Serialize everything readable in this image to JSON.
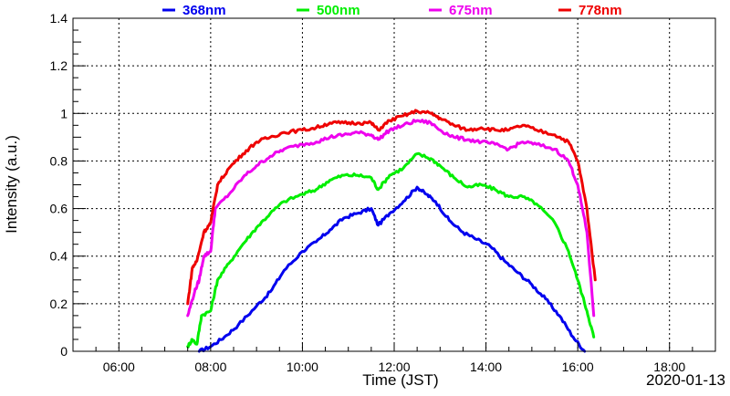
{
  "chart_data": {
    "type": "line",
    "title": "",
    "xlabel": "Time (JST)",
    "ylabel": "Intensity (a.u.)",
    "date_label": "2020-01-13",
    "xlim": [
      5.0,
      19.0
    ],
    "ylim": [
      0,
      1.4
    ],
    "x_ticks": [
      {
        "value": 6,
        "label": "06:00"
      },
      {
        "value": 8,
        "label": "08:00"
      },
      {
        "value": 10,
        "label": "10:00"
      },
      {
        "value": 12,
        "label": "12:00"
      },
      {
        "value": 14,
        "label": "14:00"
      },
      {
        "value": 16,
        "label": "16:00"
      },
      {
        "value": 18,
        "label": "18:00"
      }
    ],
    "y_ticks": [
      {
        "value": 0,
        "label": "0"
      },
      {
        "value": 0.2,
        "label": "0.2"
      },
      {
        "value": 0.4,
        "label": "0.4"
      },
      {
        "value": 0.6,
        "label": "0.6"
      },
      {
        "value": 0.8,
        "label": "0.8"
      },
      {
        "value": 1.0,
        "label": "1"
      },
      {
        "value": 1.2,
        "label": "1.2"
      },
      {
        "value": 1.4,
        "label": "1.4"
      }
    ],
    "grid": true,
    "legend_position": "top",
    "series": [
      {
        "name": "368nm",
        "color": "#0000ee",
        "points": [
          [
            7.75,
            0.0
          ],
          [
            8.0,
            0.02
          ],
          [
            8.3,
            0.06
          ],
          [
            8.6,
            0.11
          ],
          [
            9.0,
            0.19
          ],
          [
            9.3,
            0.25
          ],
          [
            9.6,
            0.34
          ],
          [
            10.0,
            0.42
          ],
          [
            10.3,
            0.46
          ],
          [
            10.6,
            0.51
          ],
          [
            10.9,
            0.56
          ],
          [
            11.2,
            0.58
          ],
          [
            11.5,
            0.6
          ],
          [
            11.65,
            0.53
          ],
          [
            11.9,
            0.58
          ],
          [
            12.2,
            0.63
          ],
          [
            12.5,
            0.69
          ],
          [
            12.7,
            0.66
          ],
          [
            12.9,
            0.63
          ],
          [
            13.2,
            0.55
          ],
          [
            13.5,
            0.5
          ],
          [
            13.8,
            0.47
          ],
          [
            14.1,
            0.44
          ],
          [
            14.4,
            0.38
          ],
          [
            14.7,
            0.33
          ],
          [
            15.0,
            0.28
          ],
          [
            15.3,
            0.22
          ],
          [
            15.6,
            0.15
          ],
          [
            15.9,
            0.06
          ],
          [
            16.15,
            0.0
          ]
        ]
      },
      {
        "name": "500nm",
        "color": "#00ee00",
        "points": [
          [
            7.5,
            0.02
          ],
          [
            7.6,
            0.05
          ],
          [
            7.7,
            0.03
          ],
          [
            7.8,
            0.15
          ],
          [
            8.0,
            0.17
          ],
          [
            8.15,
            0.3
          ],
          [
            8.4,
            0.37
          ],
          [
            8.7,
            0.45
          ],
          [
            9.0,
            0.52
          ],
          [
            9.3,
            0.58
          ],
          [
            9.6,
            0.63
          ],
          [
            10.0,
            0.66
          ],
          [
            10.3,
            0.68
          ],
          [
            10.6,
            0.72
          ],
          [
            10.9,
            0.74
          ],
          [
            11.2,
            0.74
          ],
          [
            11.5,
            0.73
          ],
          [
            11.65,
            0.68
          ],
          [
            11.9,
            0.74
          ],
          [
            12.2,
            0.77
          ],
          [
            12.5,
            0.83
          ],
          [
            12.8,
            0.81
          ],
          [
            13.0,
            0.78
          ],
          [
            13.3,
            0.73
          ],
          [
            13.6,
            0.69
          ],
          [
            13.9,
            0.7
          ],
          [
            14.2,
            0.68
          ],
          [
            14.5,
            0.65
          ],
          [
            14.8,
            0.65
          ],
          [
            15.1,
            0.62
          ],
          [
            15.5,
            0.54
          ],
          [
            15.8,
            0.42
          ],
          [
            16.0,
            0.3
          ],
          [
            16.2,
            0.17
          ],
          [
            16.35,
            0.06
          ]
        ]
      },
      {
        "name": "675nm",
        "color": "#ee00ee",
        "points": [
          [
            7.5,
            0.15
          ],
          [
            7.65,
            0.25
          ],
          [
            7.75,
            0.3
          ],
          [
            7.85,
            0.4
          ],
          [
            8.0,
            0.42
          ],
          [
            8.1,
            0.6
          ],
          [
            8.4,
            0.66
          ],
          [
            8.7,
            0.73
          ],
          [
            9.0,
            0.78
          ],
          [
            9.3,
            0.82
          ],
          [
            9.6,
            0.85
          ],
          [
            10.0,
            0.87
          ],
          [
            10.3,
            0.88
          ],
          [
            10.6,
            0.9
          ],
          [
            10.9,
            0.91
          ],
          [
            11.2,
            0.92
          ],
          [
            11.5,
            0.91
          ],
          [
            11.65,
            0.89
          ],
          [
            11.9,
            0.93
          ],
          [
            12.2,
            0.95
          ],
          [
            12.5,
            0.97
          ],
          [
            12.8,
            0.96
          ],
          [
            13.0,
            0.93
          ],
          [
            13.3,
            0.9
          ],
          [
            13.6,
            0.89
          ],
          [
            13.9,
            0.88
          ],
          [
            14.2,
            0.87
          ],
          [
            14.5,
            0.85
          ],
          [
            14.8,
            0.88
          ],
          [
            15.1,
            0.87
          ],
          [
            15.5,
            0.85
          ],
          [
            15.8,
            0.8
          ],
          [
            16.0,
            0.7
          ],
          [
            16.2,
            0.5
          ],
          [
            16.35,
            0.15
          ]
        ]
      },
      {
        "name": "778nm",
        "color": "#ee0000",
        "points": [
          [
            7.5,
            0.2
          ],
          [
            7.6,
            0.35
          ],
          [
            7.7,
            0.38
          ],
          [
            7.85,
            0.5
          ],
          [
            8.0,
            0.54
          ],
          [
            8.15,
            0.7
          ],
          [
            8.4,
            0.77
          ],
          [
            8.7,
            0.83
          ],
          [
            9.0,
            0.88
          ],
          [
            9.3,
            0.9
          ],
          [
            9.6,
            0.92
          ],
          [
            10.0,
            0.93
          ],
          [
            10.3,
            0.94
          ],
          [
            10.6,
            0.96
          ],
          [
            10.9,
            0.96
          ],
          [
            11.2,
            0.96
          ],
          [
            11.5,
            0.96
          ],
          [
            11.65,
            0.93
          ],
          [
            11.9,
            0.97
          ],
          [
            12.2,
            0.99
          ],
          [
            12.5,
            1.01
          ],
          [
            12.8,
            1.0
          ],
          [
            13.0,
            0.98
          ],
          [
            13.3,
            0.95
          ],
          [
            13.6,
            0.93
          ],
          [
            13.9,
            0.94
          ],
          [
            14.2,
            0.93
          ],
          [
            14.5,
            0.93
          ],
          [
            14.8,
            0.95
          ],
          [
            15.1,
            0.93
          ],
          [
            15.5,
            0.91
          ],
          [
            15.8,
            0.88
          ],
          [
            16.0,
            0.8
          ],
          [
            16.2,
            0.6
          ],
          [
            16.38,
            0.3
          ]
        ]
      }
    ]
  }
}
